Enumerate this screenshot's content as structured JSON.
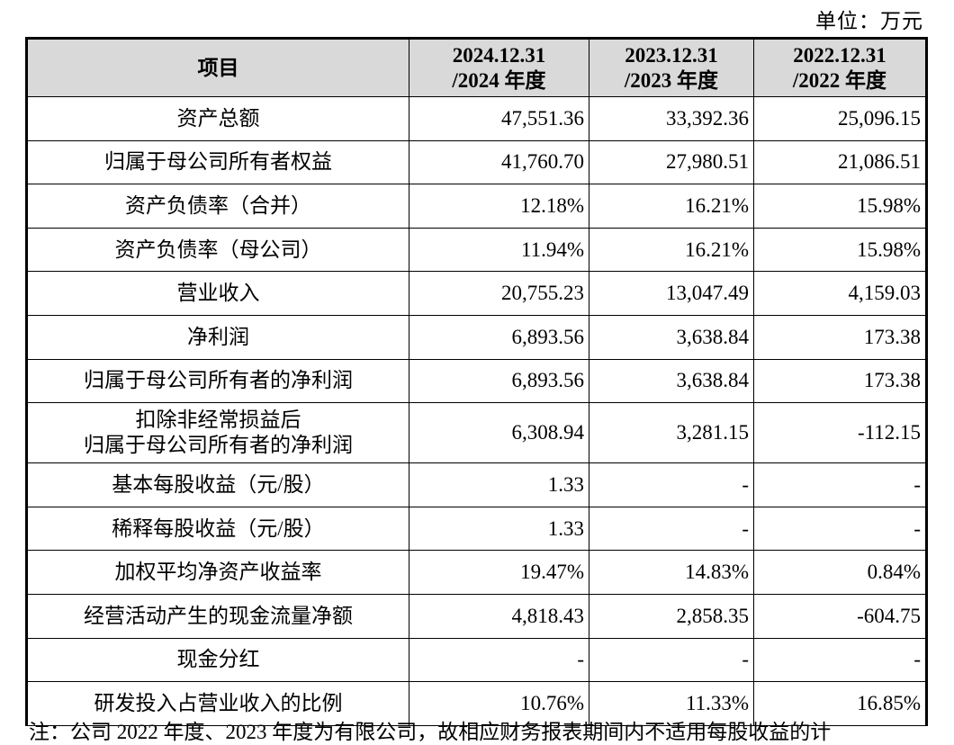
{
  "unit_label": "单位：万元",
  "header": {
    "item": "项目",
    "col1_line1": "2024.12.31",
    "col1_line2": "/2024 年度",
    "col2_line1": "2023.12.31",
    "col2_line2": "/2023 年度",
    "col3_line1": "2022.12.31",
    "col3_line2": "/2022 年度"
  },
  "rows": [
    {
      "label": "资产总额",
      "v2024": "47,551.36",
      "v2023": "33,392.36",
      "v2022": "25,096.15"
    },
    {
      "label": "归属于母公司所有者权益",
      "v2024": "41,760.70",
      "v2023": "27,980.51",
      "v2022": "21,086.51"
    },
    {
      "label": "资产负债率（合并）",
      "v2024": "12.18%",
      "v2023": "16.21%",
      "v2022": "15.98%"
    },
    {
      "label": "资产负债率（母公司）",
      "v2024": "11.94%",
      "v2023": "16.21%",
      "v2022": "15.98%"
    },
    {
      "label": "营业收入",
      "v2024": "20,755.23",
      "v2023": "13,047.49",
      "v2022": "4,159.03"
    },
    {
      "label": "净利润",
      "v2024": "6,893.56",
      "v2023": "3,638.84",
      "v2022": "173.38"
    },
    {
      "label": "归属于母公司所有者的净利润",
      "v2024": "6,893.56",
      "v2023": "3,638.84",
      "v2022": "173.38"
    },
    {
      "label_line1": "扣除非经常损益后",
      "label_line2": "归属于母公司所有者的净利润",
      "v2024": "6,308.94",
      "v2023": "3,281.15",
      "v2022": "-112.15"
    },
    {
      "label": "基本每股收益（元/股）",
      "v2024": "1.33",
      "v2023": "-",
      "v2022": "-"
    },
    {
      "label": "稀释每股收益（元/股）",
      "v2024": "1.33",
      "v2023": "-",
      "v2022": "-"
    },
    {
      "label": "加权平均净资产收益率",
      "v2024": "19.47%",
      "v2023": "14.83%",
      "v2022": "0.84%"
    },
    {
      "label": "经营活动产生的现金流量净额",
      "v2024": "4,818.43",
      "v2023": "2,858.35",
      "v2022": "-604.75"
    },
    {
      "label": "现金分红",
      "v2024": "-",
      "v2023": "-",
      "v2022": "-"
    },
    {
      "label": "研发投入占营业收入的比例",
      "v2024": "10.76%",
      "v2023": "11.33%",
      "v2022": "16.85%"
    }
  ],
  "footnote": "注：公司 2022 年度、2023 年度为有限公司，故相应财务报表期间内不适用每股收益的计"
}
